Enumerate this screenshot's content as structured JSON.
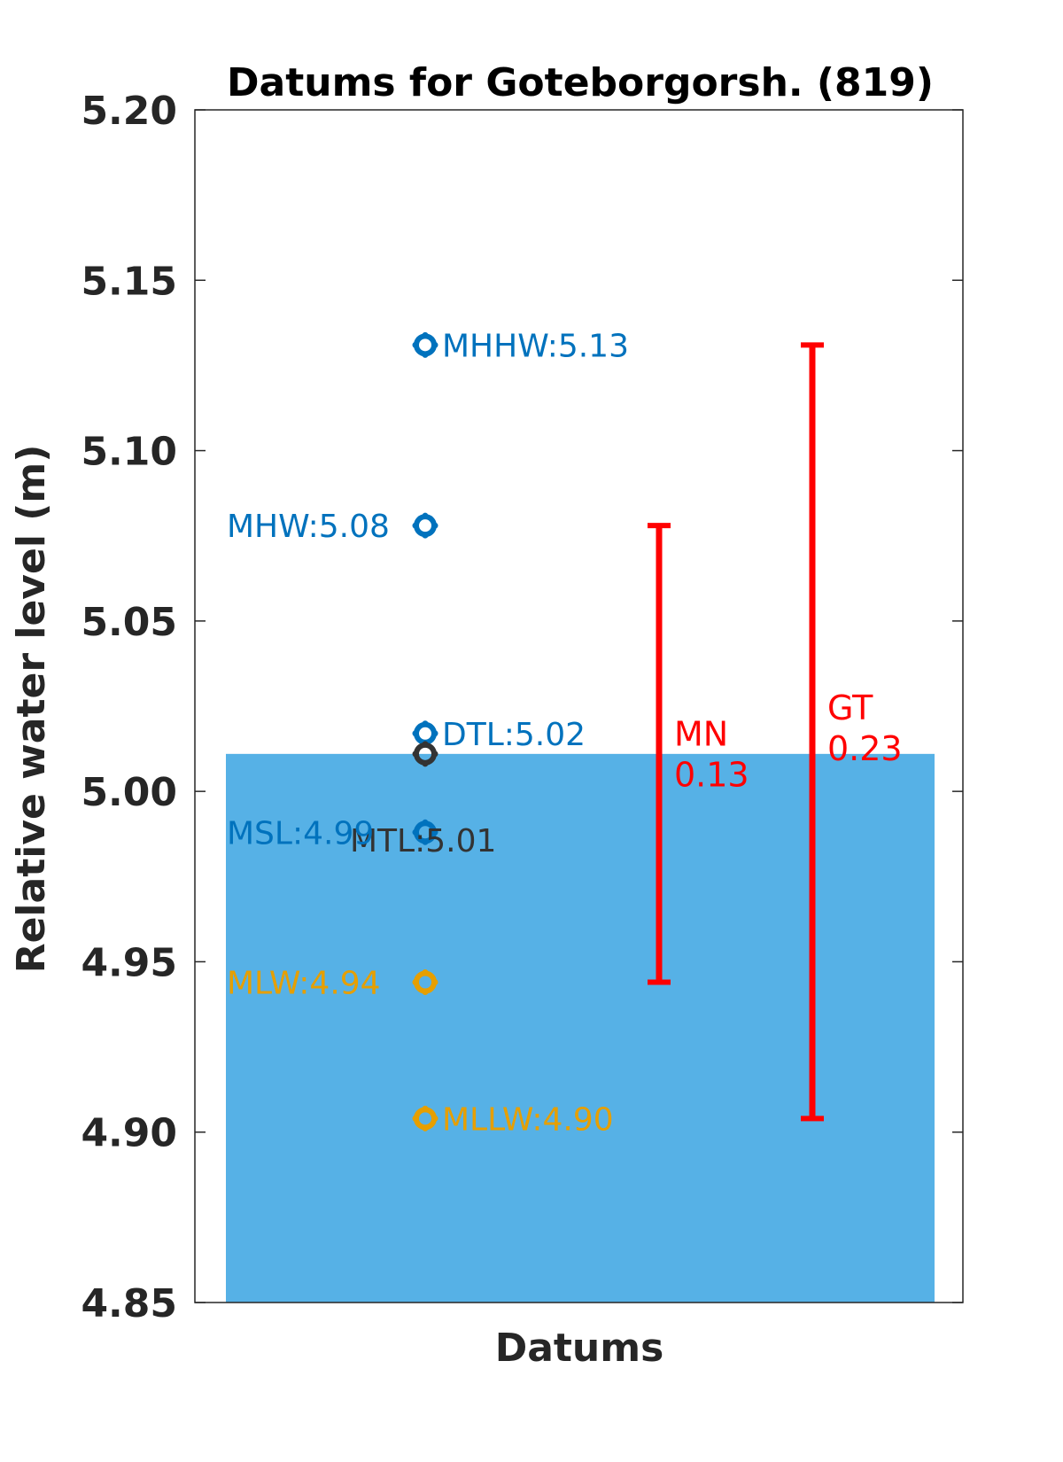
{
  "chart_data": {
    "type": "scatter",
    "title": "Datums for Goteborgorsh. (819)",
    "xlabel": "Datums",
    "ylabel": "Relative water level (m)",
    "ylim": [
      4.85,
      5.2
    ],
    "yticks": [
      "4.85",
      "4.90",
      "4.95",
      "5.00",
      "5.05",
      "5.10",
      "5.15",
      "5.20"
    ],
    "grid": false,
    "background_bar": {
      "value": 5.011,
      "color": "#56b1e6"
    },
    "datums": [
      {
        "name": "MHHW",
        "value": 5.131,
        "label": "MHHW:5.13",
        "color": "#0072bd",
        "label_side": "right"
      },
      {
        "name": "MHW",
        "value": 5.078,
        "label": "MHW:5.08",
        "color": "#0072bd",
        "label_side": "left"
      },
      {
        "name": "DTL",
        "value": 5.017,
        "label": "DTL:5.02",
        "color": "#0072bd",
        "label_side": "right"
      },
      {
        "name": "MTL",
        "value": 5.011,
        "label": "MTL:5.01",
        "color": "#333333",
        "label_side": "below"
      },
      {
        "name": "MSL",
        "value": 4.988,
        "label": "MSL:4.99",
        "color": "#0072bd",
        "label_side": "left"
      },
      {
        "name": "MLW",
        "value": 4.944,
        "label": "MLW:4.94",
        "color": "#e69f00",
        "label_side": "left"
      },
      {
        "name": "MLLW",
        "value": 4.904,
        "label": "MLLW:4.90",
        "color": "#e69f00",
        "label_side": "right"
      }
    ],
    "ranges": [
      {
        "name": "MN",
        "low": 4.944,
        "high": 5.078,
        "labels": [
          "MN",
          "0.13"
        ],
        "color": "#ff0000"
      },
      {
        "name": "GT",
        "low": 4.904,
        "high": 5.131,
        "labels": [
          "GT",
          "0.23"
        ],
        "color": "#ff0000"
      }
    ]
  }
}
